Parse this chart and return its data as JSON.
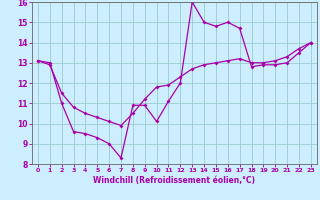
{
  "title": "",
  "xlabel": "Windchill (Refroidissement éolien,°C)",
  "bg_color": "#cceeff",
  "line_color": "#aa00aa",
  "grid_color": "#99cccc",
  "axis_color": "#666666",
  "tick_color": "#aa00aa",
  "xlim": [
    -0.5,
    23.5
  ],
  "ylim": [
    8,
    16
  ],
  "yticks": [
    8,
    9,
    10,
    11,
    12,
    13,
    14,
    15,
    16
  ],
  "xticks": [
    0,
    1,
    2,
    3,
    4,
    5,
    6,
    7,
    8,
    9,
    10,
    11,
    12,
    13,
    14,
    15,
    16,
    17,
    18,
    19,
    20,
    21,
    22,
    23
  ],
  "curve1_x": [
    0,
    1,
    2,
    3,
    4,
    5,
    6,
    7,
    8,
    9,
    10,
    11,
    12,
    13,
    14,
    15,
    16,
    17,
    18,
    19,
    20,
    21,
    22,
    23
  ],
  "curve1_y": [
    13.1,
    13.0,
    11.0,
    9.6,
    9.5,
    9.3,
    9.0,
    8.3,
    10.9,
    10.9,
    10.1,
    11.1,
    12.0,
    16.0,
    15.0,
    14.8,
    15.0,
    14.7,
    12.8,
    12.9,
    12.9,
    13.0,
    13.5,
    14.0
  ],
  "curve2_x": [
    0,
    1,
    2,
    3,
    4,
    5,
    6,
    7,
    8,
    9,
    10,
    11,
    12,
    13,
    14,
    15,
    16,
    17,
    18,
    19,
    20,
    21,
    22,
    23
  ],
  "curve2_y": [
    13.1,
    12.9,
    11.5,
    10.8,
    10.5,
    10.3,
    10.1,
    9.9,
    10.5,
    11.2,
    11.8,
    11.9,
    12.3,
    12.7,
    12.9,
    13.0,
    13.1,
    13.2,
    13.0,
    13.0,
    13.1,
    13.3,
    13.7,
    14.0
  ]
}
